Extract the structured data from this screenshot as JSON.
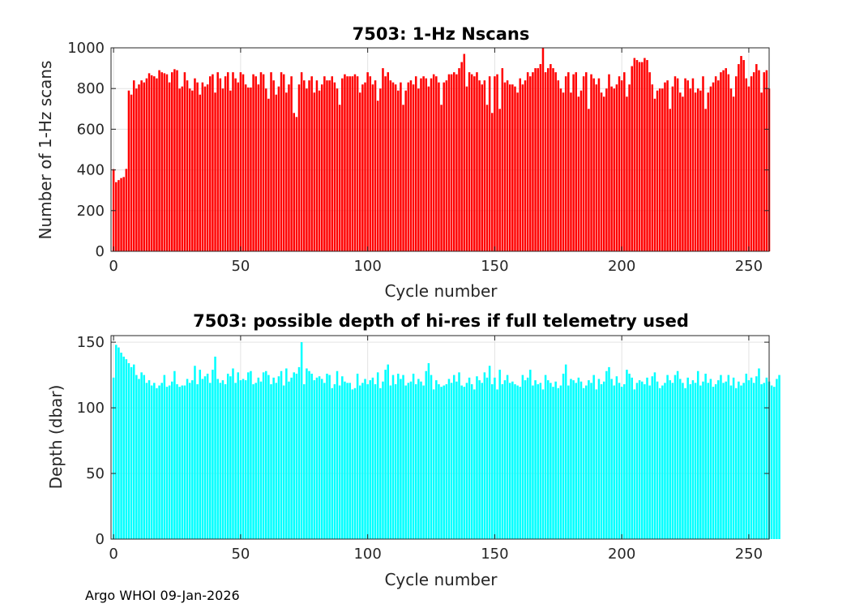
{
  "footer": "Argo WHOI 09-Jan-2026",
  "chart_data": [
    {
      "type": "bar",
      "title": "7503: 1-Hz Nscans",
      "xlabel": "Cycle number",
      "ylabel": "Number of 1-Hz scans",
      "xlim": [
        -1,
        258
      ],
      "ylim": [
        0,
        1000
      ],
      "xticks": [
        0,
        50,
        100,
        150,
        200,
        250
      ],
      "yticks": [
        0,
        200,
        400,
        600,
        800,
        1000
      ],
      "color": "#ff0000",
      "grid": true,
      "x_start": 0,
      "values": [
        404,
        340,
        350,
        360,
        365,
        405,
        790,
        770,
        840,
        800,
        820,
        840,
        830,
        850,
        875,
        865,
        860,
        850,
        890,
        880,
        875,
        870,
        830,
        880,
        895,
        890,
        800,
        810,
        880,
        840,
        800,
        790,
        850,
        830,
        770,
        830,
        810,
        820,
        860,
        870,
        780,
        880,
        850,
        800,
        860,
        880,
        790,
        880,
        850,
        830,
        880,
        870,
        820,
        805,
        805,
        870,
        860,
        820,
        880,
        870,
        800,
        750,
        880,
        840,
        770,
        810,
        880,
        870,
        780,
        820,
        860,
        680,
        660,
        820,
        880,
        840,
        800,
        840,
        860,
        780,
        840,
        790,
        820,
        860,
        840,
        840,
        860,
        830,
        800,
        720,
        850,
        870,
        860,
        860,
        860,
        870,
        860,
        780,
        820,
        830,
        880,
        860,
        820,
        840,
        740,
        800,
        900,
        860,
        880,
        840,
        830,
        820,
        790,
        830,
        720,
        790,
        830,
        840,
        820,
        860,
        800,
        850,
        860,
        850,
        810,
        850,
        870,
        860,
        830,
        720,
        830,
        840,
        870,
        870,
        880,
        870,
        900,
        930,
        970,
        810,
        880,
        870,
        860,
        880,
        840,
        820,
        840,
        720,
        860,
        680,
        860,
        870,
        700,
        900,
        830,
        840,
        820,
        820,
        810,
        780,
        850,
        820,
        840,
        880,
        860,
        880,
        900,
        900,
        920,
        1005,
        880,
        900,
        920,
        900,
        880,
        840,
        800,
        780,
        860,
        880,
        780,
        870,
        880,
        760,
        790,
        860,
        880,
        700,
        870,
        850,
        820,
        850,
        780,
        760,
        800,
        870,
        810,
        800,
        820,
        860,
        840,
        880,
        760,
        820,
        910,
        950,
        940,
        930,
        930,
        950,
        940,
        880,
        820,
        750,
        790,
        800,
        800,
        830,
        840,
        700,
        810,
        860,
        850,
        780,
        760,
        850,
        840,
        800,
        850,
        780,
        800,
        790,
        860,
        700,
        780,
        810,
        830,
        860,
        840,
        880,
        890,
        900,
        870,
        800,
        760,
        860,
        920,
        960,
        940,
        850,
        810,
        860,
        880,
        920,
        890,
        780,
        880,
        890,
        800
      ]
    },
    {
      "type": "bar",
      "title": "7503: possible depth of hi-res if full telemetry used",
      "xlabel": "Cycle number",
      "ylabel": "Depth (dbar)",
      "xlim": [
        -1,
        258
      ],
      "ylim": [
        0,
        155
      ],
      "xticks": [
        0,
        50,
        100,
        150,
        200,
        250
      ],
      "yticks": [
        0,
        50,
        100,
        150
      ],
      "color": "#00ffff",
      "grid": true,
      "x_start": 0,
      "values": [
        123,
        148,
        146,
        142,
        139,
        137,
        134,
        131,
        133,
        125,
        122,
        127,
        125,
        119,
        121,
        117,
        119,
        115,
        117,
        119,
        125,
        116,
        117,
        120,
        128,
        118,
        116,
        117,
        117,
        122,
        119,
        121,
        132,
        118,
        129,
        122,
        124,
        126,
        119,
        129,
        139,
        122,
        119,
        121,
        118,
        126,
        124,
        130,
        119,
        127,
        121,
        122,
        121,
        127,
        128,
        118,
        119,
        123,
        120,
        127,
        128,
        125,
        118,
        123,
        119,
        124,
        128,
        117,
        130,
        120,
        123,
        127,
        126,
        131,
        150,
        118,
        130,
        128,
        126,
        121,
        123,
        124,
        122,
        119,
        126,
        125,
        115,
        118,
        128,
        117,
        124,
        120,
        119,
        119,
        114,
        115,
        126,
        117,
        119,
        122,
        118,
        121,
        123,
        118,
        127,
        115,
        120,
        129,
        133,
        117,
        125,
        118,
        126,
        122,
        125,
        117,
        119,
        120,
        126,
        118,
        122,
        120,
        117,
        128,
        134,
        125,
        114,
        121,
        118,
        116,
        117,
        118,
        122,
        119,
        125,
        120,
        127,
        117,
        116,
        119,
        123,
        118,
        114,
        124,
        121,
        119,
        127,
        123,
        132,
        118,
        123,
        114,
        129,
        118,
        121,
        125,
        119,
        120,
        118,
        117,
        116,
        125,
        121,
        123,
        129,
        117,
        121,
        118,
        119,
        114,
        125,
        121,
        119,
        116,
        120,
        115,
        117,
        126,
        133,
        117,
        122,
        121,
        119,
        123,
        120,
        115,
        117,
        121,
        119,
        125,
        114,
        122,
        118,
        120,
        128,
        131,
        122,
        117,
        124,
        119,
        116,
        118,
        129,
        126,
        123,
        114,
        119,
        121,
        120,
        118,
        123,
        117,
        124,
        127,
        120,
        115,
        117,
        119,
        125,
        121,
        119,
        125,
        128,
        122,
        119,
        115,
        123,
        118,
        121,
        119,
        128,
        117,
        120,
        126,
        119,
        122,
        116,
        118,
        121,
        125,
        119,
        120,
        125,
        117,
        123,
        115,
        120,
        117,
        119,
        126,
        121,
        123,
        119,
        124,
        130,
        118,
        119,
        123,
        120,
        117,
        116,
        122,
        125
      ]
    }
  ]
}
